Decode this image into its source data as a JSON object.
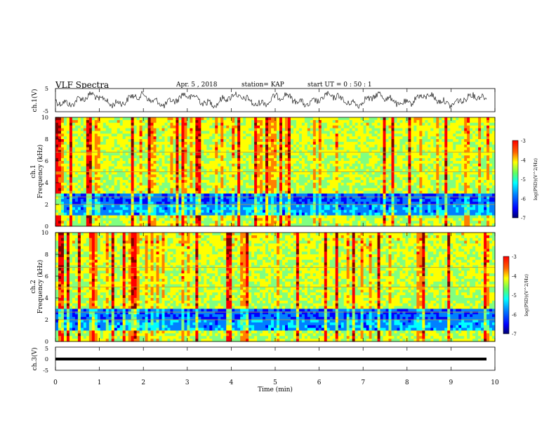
{
  "header": {
    "title": "VLF Spectra",
    "date": "Apr. 5  , 2018",
    "station": "station= KAP",
    "start": "start  UT =   0  : 50 : 1"
  },
  "colors": {
    "spectrum": [
      "#00007f",
      "#0000ff",
      "#0080ff",
      "#00ffff",
      "#80ff80",
      "#ffff00",
      "#ff8000",
      "#ff0000",
      "#800000"
    ],
    "trace": "#000000"
  },
  "chart_data": [
    {
      "type": "line",
      "panel": "ch1-waveform",
      "ylabel": "ch.1(V)",
      "ylim": [
        -5,
        5
      ],
      "yticks": [
        "5",
        "-5"
      ],
      "xlim": [
        0,
        10
      ],
      "description_of_series": "noisy waveform oscillating roughly between -2 and 2 V"
    },
    {
      "type": "heatmap",
      "panel": "ch1-spectrogram",
      "ylabel": "ch.1\nFrequency (kHz)",
      "ylim": [
        0,
        10
      ],
      "yticks": [
        "0",
        "2",
        "4",
        "6",
        "8",
        "10"
      ],
      "xlim": [
        0,
        10
      ],
      "colorbar": {
        "label": "log(PSD)(V^2/Hz)",
        "range": [
          -7,
          -3
        ],
        "ticks": [
          "-3",
          "-4",
          "-5",
          "-6",
          "-7"
        ]
      }
    },
    {
      "type": "heatmap",
      "panel": "ch2-spectrogram",
      "ylabel": "ch.2\nFrequency (kHz)",
      "ylim": [
        0,
        10
      ],
      "yticks": [
        "0",
        "2",
        "4",
        "6",
        "8",
        "10"
      ],
      "xlim": [
        0,
        10
      ],
      "colorbar": {
        "label": "log(PSD)(V^2/Hz)",
        "range": [
          -7,
          -3
        ],
        "ticks": [
          "-3",
          "-4",
          "-5",
          "-6",
          "-7"
        ]
      }
    },
    {
      "type": "line",
      "panel": "ch3-waveform",
      "ylabel": "ch.3(V)",
      "ylim": [
        -5,
        5
      ],
      "yticks": [
        "5",
        "0",
        "-5"
      ],
      "values_constant": -1.5,
      "xlim": [
        0,
        10
      ]
    }
  ],
  "xaxis": {
    "label": "Time  (min)",
    "ticks": [
      "0",
      "1",
      "2",
      "3",
      "4",
      "5",
      "6",
      "7",
      "8",
      "9",
      "10"
    ]
  }
}
